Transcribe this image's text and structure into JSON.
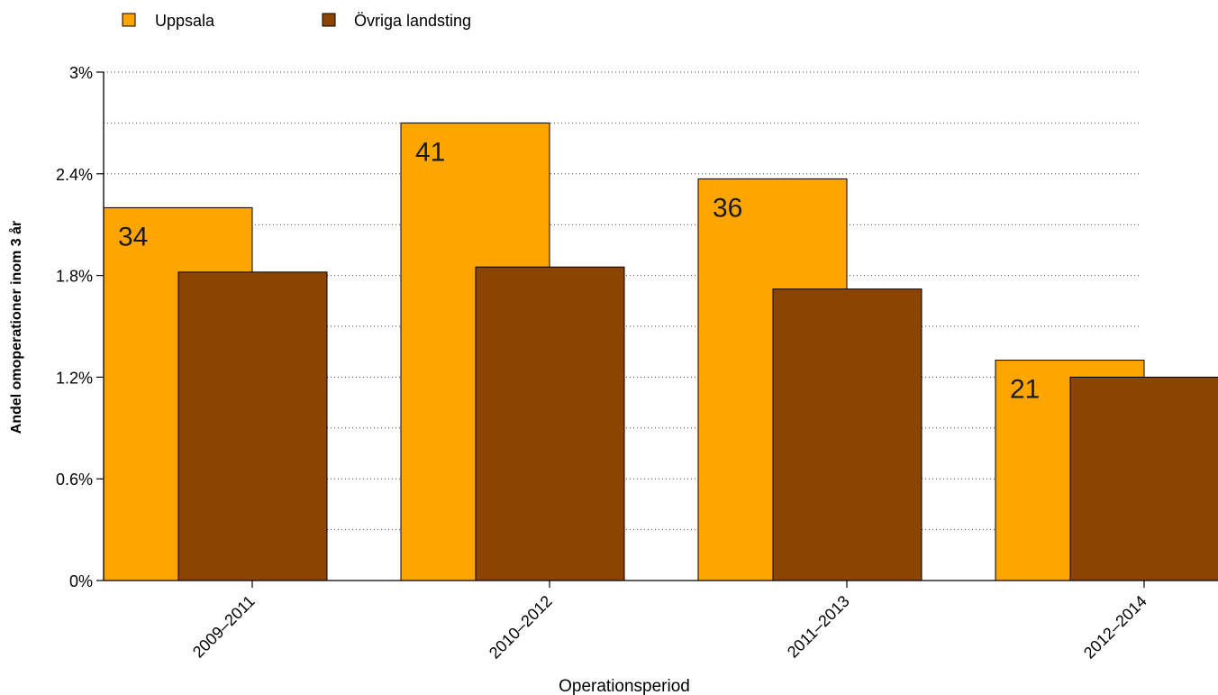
{
  "chart_data": {
    "type": "bar",
    "categories": [
      "2009–2011",
      "2010–2012",
      "2011–2013",
      "2012–2014"
    ],
    "series": [
      {
        "name": "Uppsala",
        "values": [
          2.2,
          2.7,
          2.37,
          1.3
        ],
        "counts": [
          "34",
          "41",
          "36",
          "21"
        ],
        "color": "#FFA500"
      },
      {
        "name": "Övriga landsting",
        "values": [
          1.82,
          1.85,
          1.72,
          1.2
        ],
        "color": "#8B4500"
      }
    ],
    "xlabel": "Operationsperiod",
    "ylabel": "Andel omoperationer inom 3 år",
    "ylim": [
      0,
      3
    ],
    "yticks": [
      0,
      0.6,
      1.2,
      1.8,
      2.4,
      3
    ],
    "ytick_labels": [
      "0%",
      "0.6%",
      "1.2%",
      "1.8%",
      "2.4%",
      "3%"
    ],
    "grid": "horizontal-dotted",
    "legend_position": "top-left"
  }
}
